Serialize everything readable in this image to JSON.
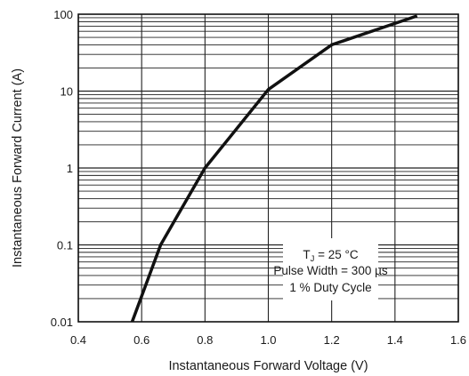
{
  "chart_data": {
    "type": "line",
    "title": "",
    "xlabel": "Instantaneous Forward Voltage (V)",
    "ylabel": "Instantaneous Forward Current (A)",
    "xlim": [
      0.4,
      1.6
    ],
    "ylim": [
      0.01,
      100
    ],
    "y_scale": "log",
    "grid": true,
    "x_ticks": [
      "0.4",
      "0.6",
      "0.8",
      "1.0",
      "1.2",
      "1.4",
      "1.6"
    ],
    "y_ticks": [
      "0.01",
      "0.1",
      "1",
      "10",
      "100"
    ],
    "series": [
      {
        "x": [
          0.57,
          0.66,
          0.8,
          1.0,
          1.2,
          1.47
        ],
        "y": [
          0.01,
          0.1,
          1.0,
          10.5,
          40,
          95
        ]
      }
    ],
    "annotation": {
      "line1_main": "T",
      "line1_sub": "J",
      "line1_rest": " = 25 °C",
      "line2": "Pulse Width = 300 µs",
      "line3": "1 % Duty Cycle"
    }
  }
}
